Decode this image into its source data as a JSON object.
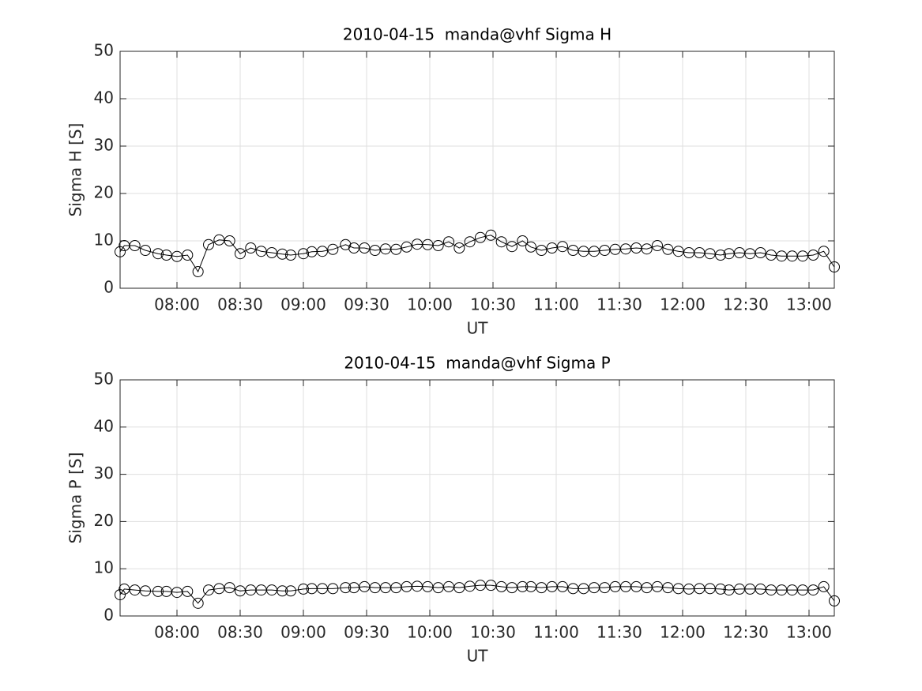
{
  "chart_data": [
    {
      "type": "line",
      "title": "2010-04-15  manda@vhf Sigma H",
      "xlabel": "UT",
      "ylabel": "Sigma H [S]",
      "x": [
        "07:33",
        "07:35",
        "07:40",
        "07:45",
        "07:51",
        "07:55",
        "08:00",
        "08:05",
        "08:10",
        "08:15",
        "08:20",
        "08:25",
        "08:30",
        "08:35",
        "08:40",
        "08:45",
        "08:50",
        "08:54",
        "09:00",
        "09:04",
        "09:09",
        "09:14",
        "09:20",
        "09:24",
        "09:29",
        "09:34",
        "09:39",
        "09:44",
        "09:49",
        "09:54",
        "09:59",
        "10:04",
        "10:09",
        "10:14",
        "10:19",
        "10:24",
        "10:29",
        "10:34",
        "10:39",
        "10:44",
        "10:48",
        "10:53",
        "10:58",
        "11:03",
        "11:08",
        "11:13",
        "11:18",
        "11:23",
        "11:28",
        "11:33",
        "11:38",
        "11:43",
        "11:48",
        "11:53",
        "11:58",
        "12:03",
        "12:08",
        "12:13",
        "12:18",
        "12:22",
        "12:27",
        "12:32",
        "12:37",
        "12:42",
        "12:47",
        "12:52",
        "12:57",
        "13:02",
        "13:07",
        "13:12"
      ],
      "values": [
        7.7,
        9.0,
        9.0,
        8.0,
        7.3,
        7.0,
        6.7,
        7.0,
        3.5,
        9.2,
        10.2,
        10.0,
        7.3,
        8.5,
        7.8,
        7.5,
        7.2,
        7.0,
        7.3,
        7.7,
        7.8,
        8.2,
        9.2,
        8.5,
        8.5,
        8.0,
        8.3,
        8.2,
        8.7,
        9.3,
        9.2,
        9.0,
        9.8,
        8.5,
        9.8,
        10.7,
        11.2,
        9.8,
        8.8,
        10.0,
        8.7,
        8.0,
        8.5,
        8.8,
        8.0,
        7.8,
        7.8,
        8.0,
        8.2,
        8.3,
        8.5,
        8.3,
        9.0,
        8.2,
        7.8,
        7.5,
        7.5,
        7.3,
        7.0,
        7.3,
        7.5,
        7.3,
        7.5,
        7.0,
        6.8,
        6.8,
        6.8,
        7.0,
        7.8,
        4.5
      ],
      "color": "#000000",
      "marker": "circle",
      "xlim": [
        "07:33",
        "13:12"
      ],
      "xticks": [
        "08:00",
        "08:30",
        "09:00",
        "09:30",
        "10:00",
        "10:30",
        "11:00",
        "11:30",
        "12:00",
        "12:30",
        "13:00"
      ],
      "ylim": [
        0,
        50
      ],
      "yticks": [
        0,
        10,
        20,
        30,
        40,
        50
      ],
      "grid": true
    },
    {
      "type": "line",
      "title": "2010-04-15  manda@vhf Sigma P",
      "xlabel": "UT",
      "ylabel": "Sigma P [S]",
      "x": [
        "07:33",
        "07:35",
        "07:40",
        "07:45",
        "07:51",
        "07:55",
        "08:00",
        "08:05",
        "08:10",
        "08:15",
        "08:20",
        "08:25",
        "08:30",
        "08:35",
        "08:40",
        "08:45",
        "08:50",
        "08:54",
        "09:00",
        "09:04",
        "09:09",
        "09:14",
        "09:20",
        "09:24",
        "09:29",
        "09:34",
        "09:39",
        "09:44",
        "09:49",
        "09:54",
        "09:59",
        "10:04",
        "10:09",
        "10:14",
        "10:19",
        "10:24",
        "10:29",
        "10:34",
        "10:39",
        "10:44",
        "10:48",
        "10:53",
        "10:58",
        "11:03",
        "11:08",
        "11:13",
        "11:18",
        "11:23",
        "11:28",
        "11:33",
        "11:38",
        "11:43",
        "11:48",
        "11:53",
        "11:58",
        "12:03",
        "12:08",
        "12:13",
        "12:18",
        "12:22",
        "12:27",
        "12:32",
        "12:37",
        "12:42",
        "12:47",
        "12:52",
        "12:57",
        "13:02",
        "13:07",
        "13:12"
      ],
      "values": [
        4.5,
        5.7,
        5.5,
        5.3,
        5.2,
        5.2,
        5.0,
        5.2,
        2.7,
        5.5,
        5.8,
        6.0,
        5.3,
        5.5,
        5.5,
        5.5,
        5.3,
        5.3,
        5.7,
        5.8,
        5.8,
        5.8,
        6.0,
        6.0,
        6.2,
        6.0,
        6.0,
        6.0,
        6.2,
        6.3,
        6.2,
        6.0,
        6.2,
        6.0,
        6.3,
        6.5,
        6.5,
        6.2,
        6.0,
        6.2,
        6.2,
        6.0,
        6.2,
        6.2,
        5.8,
        5.8,
        6.0,
        6.0,
        6.2,
        6.2,
        6.2,
        6.0,
        6.2,
        6.0,
        5.8,
        5.7,
        5.8,
        5.8,
        5.7,
        5.5,
        5.7,
        5.7,
        5.7,
        5.5,
        5.5,
        5.5,
        5.5,
        5.5,
        6.2,
        3.2
      ],
      "color": "#000000",
      "marker": "circle",
      "xlim": [
        "07:33",
        "13:12"
      ],
      "xticks": [
        "08:00",
        "08:30",
        "09:00",
        "09:30",
        "10:00",
        "10:30",
        "11:00",
        "11:30",
        "12:00",
        "12:30",
        "13:00"
      ],
      "ylim": [
        0,
        50
      ],
      "yticks": [
        0,
        10,
        20,
        30,
        40,
        50
      ],
      "grid": true
    }
  ]
}
